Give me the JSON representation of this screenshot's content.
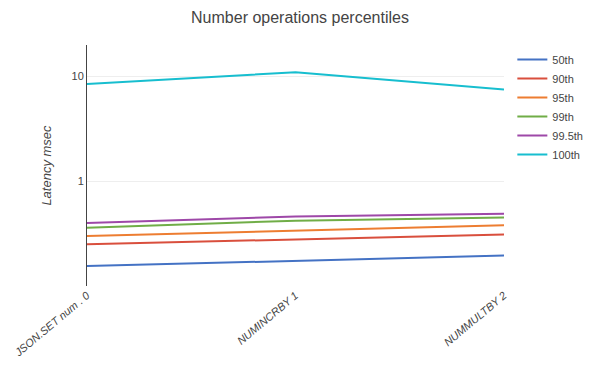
{
  "chart_data": {
    "type": "line",
    "title": "Number operations percentiles",
    "ylabel": "Latency msec",
    "categories": [
      "JSON.SET num . 0",
      "NUMINCRBY 1",
      "NUMMULTBY 2"
    ],
    "series": [
      {
        "name": "50th",
        "color": "#4472C4",
        "values": [
          0.155,
          0.175,
          0.195
        ]
      },
      {
        "name": "90th",
        "color": "#D94F3D",
        "values": [
          0.25,
          0.28,
          0.31
        ]
      },
      {
        "name": "95th",
        "color": "#ED7D31",
        "values": [
          0.3,
          0.34,
          0.38
        ]
      },
      {
        "name": "99th",
        "color": "#70AD47",
        "values": [
          0.36,
          0.42,
          0.45
        ]
      },
      {
        "name": "99.5th",
        "color": "#9E48A8",
        "values": [
          0.4,
          0.46,
          0.49
        ]
      },
      {
        "name": "100th",
        "color": "#17BECF",
        "values": [
          8.5,
          11.0,
          7.5
        ]
      }
    ],
    "log": "y",
    "ylim": [
      0.1,
      20
    ],
    "yticks": [
      1,
      10
    ],
    "grid": true,
    "legend": "right"
  }
}
